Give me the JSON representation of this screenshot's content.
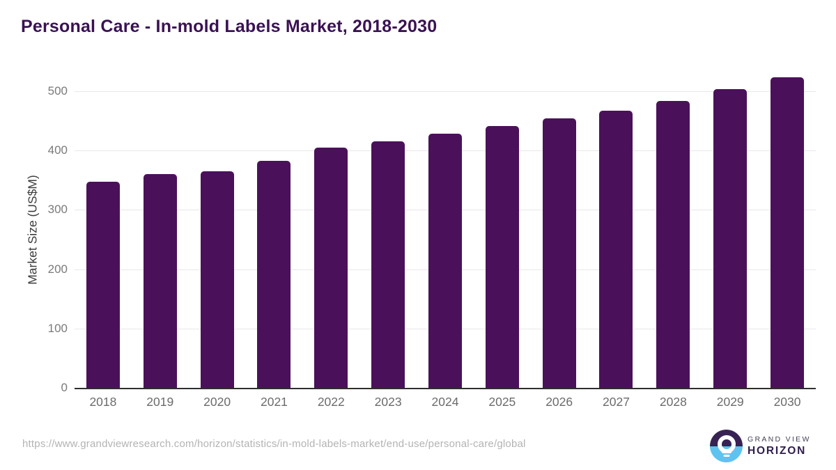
{
  "page": {
    "title": "Personal Care - In-mold Labels Market, 2018-2030",
    "source_url": "https://www.grandviewresearch.com/horizon/statistics/in-mold-labels-market/end-use/personal-care/global",
    "logo": {
      "line1": "GRAND VIEW",
      "line2": "HORIZON"
    }
  },
  "colors": {
    "bar": "#4A115A",
    "title": "#3A1253",
    "axis_line": "#2E2E2E",
    "gridline": "#E8E8E8",
    "y_tick_label": "#7A7A7A",
    "x_tick_label": "#6B6B6B",
    "y_axis_title": "#3C3C3C",
    "url_text": "#B3B3B3",
    "logo_purple": "#382153",
    "logo_blue": "#5EC3EE",
    "background": "#FFFFFF"
  },
  "chart_data": {
    "type": "bar",
    "title": "Personal Care - In-mold Labels Market, 2018-2030",
    "categories": [
      "2018",
      "2019",
      "2020",
      "2021",
      "2022",
      "2023",
      "2024",
      "2025",
      "2026",
      "2027",
      "2028",
      "2029",
      "2030"
    ],
    "values": [
      348,
      360,
      365,
      383,
      405,
      416,
      428,
      441,
      454,
      467,
      484,
      504,
      524
    ],
    "xlabel": "",
    "ylabel": "Market Size (US$M)",
    "ylim": [
      0,
      500
    ],
    "yticks": [
      0,
      100,
      200,
      300,
      400,
      500
    ],
    "grid": true,
    "legend": false,
    "series_color": "#4A115A"
  }
}
